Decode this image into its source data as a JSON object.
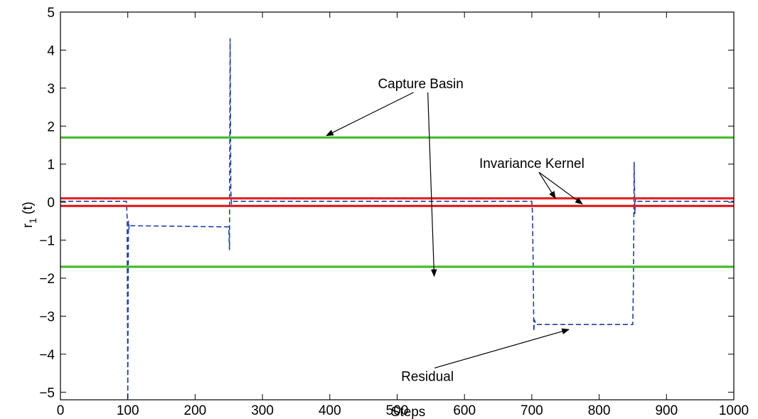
{
  "chart_data": {
    "type": "line",
    "xlabel": "Steps",
    "ylabel": "r",
    "ylabel_sub": "1",
    "ylabel_suffix": "(t)",
    "xlim": [
      0,
      1000
    ],
    "ylim": [
      -5.2,
      5
    ],
    "xticks": [
      0,
      100,
      200,
      300,
      400,
      500,
      600,
      700,
      800,
      900,
      1000
    ],
    "xtick_labels": [
      "0",
      "100",
      "200",
      "300",
      "400",
      "500",
      "600",
      "700",
      "800",
      "900",
      "1000"
    ],
    "yticks": [
      -5,
      -4,
      -3,
      -2,
      -1,
      0,
      1,
      2,
      3,
      4,
      5
    ],
    "ytick_labels": [
      "−5",
      "−4",
      "−3",
      "−2",
      "−1",
      "0",
      "1",
      "2",
      "3",
      "4",
      "5"
    ],
    "grid": false,
    "series": [
      {
        "style": "dashed",
        "color": "#1f3fa8",
        "x": [
          0,
          98,
          99,
          100,
          101,
          102,
          104,
          250,
          251,
          252,
          253,
          254,
          256,
          700,
          701,
          702,
          703,
          704,
          706,
          850,
          851,
          852,
          853,
          854,
          856,
          1000
        ],
        "y": [
          0.02,
          0.02,
          -0.4,
          -5.2,
          -0.5,
          -0.7,
          -0.62,
          -0.65,
          -1.25,
          4.3,
          0.3,
          -0.05,
          0.02,
          0.02,
          -0.3,
          -1.6,
          -3.4,
          -3.1,
          -3.22,
          -3.22,
          -2.0,
          1.05,
          -0.3,
          0.1,
          0.02,
          0.02
        ]
      },
      {
        "color": "#44bb2e",
        "x": [
          0,
          1000
        ],
        "y": [
          1.7,
          1.7
        ]
      },
      {
        "color": "#44bb2e",
        "x": [
          0,
          1000
        ],
        "y": [
          -1.7,
          -1.7
        ]
      },
      {
        "color": "#e02020",
        "x": [
          0,
          1000
        ],
        "y": [
          0.1,
          0.1
        ]
      },
      {
        "color": "#e02020",
        "x": [
          0,
          1000
        ],
        "y": [
          -0.1,
          -0.1
        ]
      }
    ],
    "annotations": [
      {
        "text": "Capture Basin",
        "x": 535,
        "y": 3.0,
        "arrows": [
          [
            395,
            1.75
          ],
          [
            555,
            -1.95
          ]
        ]
      },
      {
        "text": "Invariance Kernel",
        "x": 700,
        "y": 0.9,
        "arrows": [
          [
            735,
            0.1
          ],
          [
            775,
            -0.05
          ]
        ]
      },
      {
        "text": "Residual",
        "x": 545,
        "y": -4.7,
        "arrows": [
          [
            755,
            -3.35
          ]
        ]
      }
    ]
  }
}
